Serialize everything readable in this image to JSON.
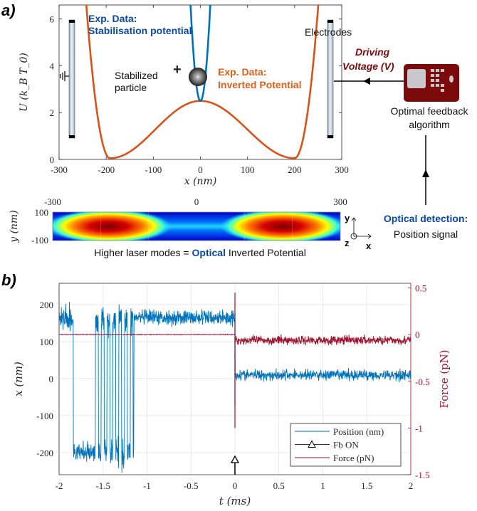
{
  "panel_a": {
    "label": "a)",
    "annotations": {
      "stab_title_1": "Exp. Data:",
      "stab_title_2": "Stabilisation potential",
      "inv_title_1": "Exp. Data:",
      "inv_title_2": "Inverted Potential",
      "particle_1": "Stabilized",
      "particle_2": "particle",
      "plus_sign": "+",
      "electrodes": "Electrodes",
      "driving_1": "Driving",
      "driving_2": "Voltage (V)",
      "algo_1": "Optimal feedback",
      "algo_2": "algorithm",
      "detect_1": "Optical detection:",
      "detect_2": "Position signal",
      "axis_y": "y",
      "axis_x": "x",
      "axis_z": "z"
    },
    "heatmap": {
      "ylabel": "y (nm)",
      "xticks": [
        "-300",
        "0",
        "300"
      ],
      "yticks": [
        "100",
        "-100"
      ],
      "caption_pre": "Higher laser modes = ",
      "caption_highlight": "Optical",
      "caption_post": " Inverted Potential",
      "lobe_centers_nm": [
        -183,
        180
      ]
    }
  },
  "panel_b": {
    "label": "b)"
  },
  "colors": {
    "blue": "#0072bd",
    "orange": "#d95319",
    "force": "#a2142f",
    "device": "#7b0a0a",
    "text_blue": "#0a48a8"
  },
  "chart_data": [
    {
      "type": "line",
      "title": "",
      "xlabel": "x (nm)",
      "ylabel": "U (k_B T_0)",
      "xlim": [
        -300,
        300
      ],
      "ylim": [
        0,
        6.6
      ],
      "xticks": [
        "-300",
        "-200",
        "-100",
        "0",
        "100",
        "200",
        "300"
      ],
      "yticks": [
        "0",
        "2",
        "4",
        "6"
      ],
      "series": [
        {
          "name": "Inverted Potential",
          "x": [
            -245,
            -230,
            -215,
            -195,
            -150,
            -100,
            -50,
            0,
            50,
            100,
            150,
            200,
            220,
            240,
            255
          ],
          "y": [
            6.6,
            3.0,
            1.1,
            0.05,
            0.5,
            1.3,
            2.1,
            2.5,
            2.1,
            1.3,
            0.5,
            0.05,
            1.1,
            3.6,
            6.6
          ]
        },
        {
          "name": "Stabilisation potential",
          "x": [
            -21,
            -15,
            -10,
            -5,
            0,
            5,
            10,
            15,
            21
          ],
          "y": [
            6.6,
            4.6,
            3.4,
            2.7,
            2.5,
            2.7,
            3.4,
            4.6,
            6.6
          ]
        }
      ]
    },
    {
      "type": "line",
      "xlabel": "t (ms)",
      "ylabel": "x (nm)",
      "ylabel_right": "Force (pN)",
      "xlim": [
        -2,
        2
      ],
      "ylim": [
        -260,
        258
      ],
      "ylim_right": [
        -1.5,
        0.55
      ],
      "xticks": [
        "-2",
        "-1.5",
        "-1",
        "-0.5",
        "0",
        "0.5",
        "1",
        "1.5",
        "2"
      ],
      "yticks": [
        "200",
        "100",
        "0",
        "-100",
        "-200"
      ],
      "yticks_right": [
        "0.5",
        "0",
        "-0.5",
        "-1",
        "-1.5"
      ],
      "grid": true,
      "legend": {
        "placement": "bottom-right",
        "entries": [
          "Position (nm)",
          "Fb ON",
          "Force (pN)"
        ]
      },
      "series": [
        {
          "name": "Position (nm)",
          "segments": [
            {
              "t": [
                -2.0,
                -1.84
              ],
              "mean": 160,
              "spread": 60
            },
            {
              "t": [
                -1.84,
                -1.6
              ],
              "mean": -200,
              "spread": 35
            },
            {
              "t": [
                -1.6,
                -1.15
              ],
              "mean": 0,
              "spread": 230,
              "note": "hopping"
            },
            {
              "t": [
                -1.15,
                0.0
              ],
              "mean": 165,
              "spread": 30
            },
            {
              "t": [
                0.0,
                2.0
              ],
              "mean": 10,
              "spread": 22
            }
          ]
        },
        {
          "name": "Fb ON",
          "t": 0
        },
        {
          "name": "Force (pN)",
          "segments": [
            {
              "t": [
                -2.0,
                0.0
              ],
              "mean": 0.0,
              "spread": 0.005
            },
            {
              "t": [
                0.0,
                2.0
              ],
              "mean": -0.06,
              "spread": 0.07
            }
          ],
          "spike": {
            "t": 0,
            "max": 0.45,
            "min": -1.0
          }
        }
      ]
    }
  ]
}
